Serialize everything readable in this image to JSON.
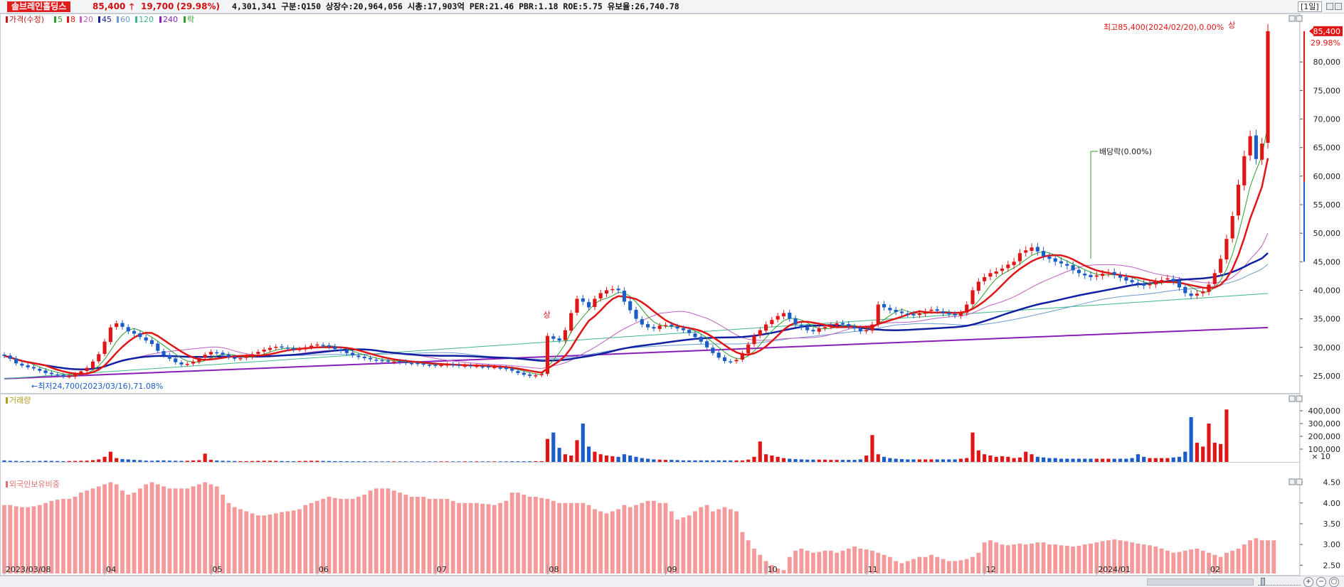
{
  "header": {
    "stock_name": "솔브레인홀딩스",
    "price": "85,400",
    "up_arrow": "🡑",
    "change": "19,700",
    "change_pct": "(29.98%)",
    "stats": "4,301,341  구분:Q150 상장수:20,964,056 시총:17,903억 PER:21.46 PBR:1.18 ROE:5.75 유보율:26,740.78",
    "period": "[1일]"
  },
  "colors": {
    "up": "#e01616",
    "down": "#1a5cc8",
    "ma5": "#2ca02c",
    "ma8": "#e01616",
    "ma20": "#c060c0",
    "ma45": "#1020a0",
    "ma60": "#6a9ad0",
    "ma120": "#3cb88a",
    "ma240": "#8a1fb8",
    "foreign_bar": "#f49a9a"
  },
  "chart_data": [
    {
      "type": "candlestick",
      "title": "가격(수정)",
      "legend": [
        {
          "name": "가격(수정)",
          "color": "#c01818"
        },
        {
          "name": "5",
          "color": "#2ca02c"
        },
        {
          "name": "8",
          "color": "#e01616"
        },
        {
          "name": "20",
          "color": "#c060c0"
        },
        {
          "name": "45",
          "color": "#1020a0"
        },
        {
          "name": "60",
          "color": "#6a9ad0"
        },
        {
          "name": "120",
          "color": "#3cb88a"
        },
        {
          "name": "240",
          "color": "#8a1fb8"
        },
        {
          "name": "락",
          "color": "#2ca02c"
        }
      ],
      "x_labels": [
        {
          "label": "2023/03/08",
          "index": 0
        },
        {
          "label": "04",
          "index": 17
        },
        {
          "label": "05",
          "index": 35
        },
        {
          "label": "06",
          "index": 53
        },
        {
          "label": "07",
          "index": 73
        },
        {
          "label": "08",
          "index": 92
        },
        {
          "label": "09",
          "index": 112
        },
        {
          "label": "10",
          "index": 129
        },
        {
          "label": "11",
          "index": 146
        },
        {
          "label": "12",
          "index": 166
        },
        {
          "label": "2024/01",
          "index": 185
        },
        {
          "label": "02",
          "index": 204
        }
      ],
      "y_ticks": [
        25000,
        30000,
        35000,
        40000,
        45000,
        50000,
        55000,
        60000,
        65000,
        70000,
        75000,
        80000
      ],
      "y_tick_labels": [
        "25,000",
        "30,000",
        "35,000",
        "40,000",
        "45,000",
        "50,000",
        "55,000",
        "60,000",
        "65,000",
        "70,000",
        "75,000",
        "80,000"
      ],
      "ylim": [
        22500,
        87500
      ],
      "current_price_label": "85,400",
      "current_change_label": "29.98%",
      "closes": [
        28500,
        28000,
        27200,
        26800,
        26500,
        26300,
        25900,
        25500,
        25300,
        25100,
        24900,
        24900,
        25300,
        25800,
        26400,
        27500,
        28800,
        31000,
        33500,
        34200,
        33600,
        32800,
        32400,
        31800,
        31200,
        30600,
        29400,
        28600,
        28000,
        27400,
        27000,
        27100,
        27500,
        28100,
        28700,
        29200,
        29000,
        28700,
        28300,
        28000,
        28100,
        28400,
        28800,
        29200,
        29600,
        29900,
        30100,
        30000,
        29800,
        29600,
        29700,
        30000,
        30300,
        30500,
        30300,
        30100,
        29700,
        29400,
        29000,
        28600,
        28300,
        28100,
        27900,
        27700,
        27600,
        27500,
        27500,
        27400,
        27300,
        27200,
        27100,
        27000,
        26900,
        26800,
        26900,
        27000,
        26900,
        26800,
        26800,
        26700,
        26700,
        26600,
        26500,
        26500,
        26400,
        26200,
        25900,
        25500,
        25200,
        25000,
        25100,
        25300,
        32000,
        31500,
        31200,
        33000,
        36000,
        38500,
        38000,
        37000,
        38500,
        39500,
        40000,
        40200,
        40000,
        38000,
        36500,
        35000,
        34000,
        33500,
        33300,
        33800,
        33900,
        33700,
        33300,
        33000,
        32500,
        31800,
        31000,
        30000,
        29000,
        28200,
        27600,
        27500,
        27800,
        29000,
        30500,
        32000,
        33000,
        34000,
        34800,
        35500,
        36000,
        35000,
        34000,
        33500,
        33000,
        32800,
        33300,
        33600,
        33900,
        34200,
        34000,
        33700,
        33300,
        32800,
        33000,
        34000,
        37500,
        37000,
        36500,
        36200,
        36000,
        35800,
        35600,
        36000,
        36300,
        36600,
        36400,
        36000,
        35800,
        35600,
        36000,
        37500,
        40000,
        41500,
        42300,
        43000,
        43300,
        43800,
        44500,
        45000,
        46500,
        47000,
        47500,
        46800,
        46000,
        45500,
        45000,
        44700,
        44300,
        43500,
        43000,
        42600,
        42300,
        42600,
        42900,
        43100,
        42700,
        42200,
        41700,
        41400,
        41100,
        40800,
        41100,
        41500,
        41800,
        42100,
        41600,
        40500,
        39500,
        39000,
        39400,
        39800,
        41000,
        43000,
        45500,
        49000,
        53000,
        58500,
        63500,
        67000,
        63000,
        65700,
        85400
      ],
      "ma_series_note": "moving averages 5, 8, 20, 45, 60, 120, 240 computed from closes",
      "annotations": [
        {
          "text": "최고85,400(2024/02/20),0.00%",
          "index": 208
        },
        {
          "text": "←최저24,700(2023/03/16),71.08%",
          "index": 4
        },
        {
          "text": "배당락(0.00%)",
          "index": 184
        },
        {
          "text": "상",
          "index": 92
        },
        {
          "text": "상",
          "index": 208
        }
      ]
    },
    {
      "type": "bar",
      "title": "거래량",
      "y_ticks": [
        100000,
        200000,
        300000,
        400000
      ],
      "y_tick_labels": [
        "100,000",
        "200,000",
        "300,000",
        "400,000"
      ],
      "unit_label": "× 10",
      "ylim": [
        0,
        450000
      ],
      "values": [
        12000,
        9000,
        8000,
        6000,
        7000,
        6500,
        8000,
        9000,
        8000,
        7000,
        6000,
        7000,
        8000,
        9000,
        10000,
        14000,
        20000,
        40000,
        80000,
        30000,
        22000,
        20000,
        16000,
        14000,
        10000,
        9000,
        11000,
        12000,
        10000,
        9000,
        8000,
        9000,
        12000,
        14000,
        65000,
        16000,
        11000,
        9000,
        8000,
        7000,
        6000,
        6000,
        7000,
        8000,
        9000,
        9000,
        8000,
        7000,
        6000,
        6000,
        7000,
        8000,
        9000,
        9000,
        8000,
        7000,
        6000,
        6000,
        5000,
        5000,
        5000,
        5000,
        4000,
        4000,
        4000,
        4000,
        4000,
        4000,
        4000,
        4000,
        4000,
        4000,
        4000,
        4000,
        4000,
        4000,
        4000,
        4000,
        4000,
        4000,
        4000,
        4000,
        4000,
        4000,
        4000,
        4000,
        5000,
        5000,
        5000,
        5000,
        6000,
        6000,
        180000,
        230000,
        110000,
        60000,
        50000,
        170000,
        300000,
        120000,
        80000,
        60000,
        50000,
        45000,
        40000,
        60000,
        50000,
        40000,
        30000,
        25000,
        20000,
        18000,
        16000,
        16000,
        14000,
        12000,
        12000,
        12000,
        12000,
        12000,
        12000,
        12000,
        12000,
        12000,
        12000,
        12000,
        18000,
        40000,
        160000,
        60000,
        50000,
        40000,
        30000,
        25000,
        22000,
        20000,
        18000,
        18000,
        18000,
        18000,
        16000,
        16000,
        16000,
        16000,
        16000,
        20000,
        50000,
        210000,
        60000,
        40000,
        30000,
        25000,
        22000,
        20000,
        20000,
        20000,
        20000,
        20000,
        20000,
        20000,
        20000,
        20000,
        25000,
        30000,
        230000,
        90000,
        60000,
        50000,
        40000,
        45000,
        40000,
        30000,
        35000,
        80000,
        60000,
        40000,
        35000,
        30000,
        30000,
        25000,
        25000,
        25000,
        25000,
        25000,
        25000,
        25000,
        25000,
        25000,
        25000,
        25000,
        25000,
        30000,
        60000,
        40000,
        30000,
        30000,
        30000,
        30000,
        35000,
        40000,
        80000,
        350000,
        150000,
        120000,
        300000,
        150000,
        140000,
        410000,
        0
      ],
      "directions": "up/down per candle"
    },
    {
      "type": "bar",
      "title": "외국인보유비중",
      "y_ticks": [
        2.5,
        3.0,
        3.5,
        4.0,
        4.5
      ],
      "y_tick_labels": [
        "2.50",
        "3.00",
        "3.50",
        "4.00",
        "4.50"
      ],
      "ylim": [
        2.3,
        4.75
      ],
      "values": [
        3.95,
        3.95,
        3.92,
        3.9,
        3.9,
        3.92,
        3.95,
        4.0,
        4.05,
        4.08,
        4.1,
        4.1,
        4.15,
        4.25,
        4.3,
        4.35,
        4.4,
        4.45,
        4.5,
        4.45,
        4.3,
        4.2,
        4.25,
        4.35,
        4.45,
        4.5,
        4.45,
        4.4,
        4.35,
        4.35,
        4.35,
        4.35,
        4.4,
        4.45,
        4.5,
        4.45,
        4.4,
        4.2,
        4.0,
        3.9,
        3.85,
        3.8,
        3.75,
        3.7,
        3.7,
        3.72,
        3.75,
        3.78,
        3.8,
        3.82,
        3.85,
        3.95,
        4.0,
        4.05,
        4.1,
        4.15,
        4.12,
        4.1,
        4.1,
        4.1,
        4.15,
        4.2,
        4.3,
        4.35,
        4.35,
        4.35,
        4.3,
        4.25,
        4.2,
        4.15,
        4.15,
        4.15,
        4.1,
        4.1,
        4.1,
        4.1,
        4.05,
        4.0,
        4.0,
        4.0,
        4.0,
        3.98,
        3.97,
        3.95,
        4.0,
        4.05,
        4.25,
        4.25,
        4.2,
        4.15,
        4.15,
        4.12,
        4.1,
        4.05,
        4.0,
        4.0,
        4.0,
        4.0,
        4.0,
        3.95,
        3.85,
        3.8,
        3.75,
        3.8,
        3.85,
        3.95,
        3.9,
        3.95,
        4.0,
        4.05,
        4.05,
        4.0,
        4.0,
        3.8,
        3.6,
        3.65,
        3.7,
        3.8,
        3.9,
        3.95,
        3.8,
        3.85,
        3.9,
        3.85,
        3.8,
        3.3,
        3.1,
        2.9,
        2.75,
        2.6,
        2.5,
        2.42,
        2.38,
        2.7,
        2.85,
        2.9,
        2.85,
        2.8,
        2.82,
        2.85,
        2.85,
        2.8,
        2.85,
        2.9,
        2.95,
        2.9,
        2.88,
        2.85,
        2.8,
        2.75,
        2.7,
        2.6,
        2.55,
        2.6,
        2.65,
        2.7,
        2.7,
        2.75,
        2.7,
        2.65,
        2.6,
        2.6,
        2.62,
        2.65,
        2.7,
        2.8,
        3.05,
        3.1,
        3.05,
        3.0,
        2.98,
        3.0,
        3.02,
        3.0,
        3.02,
        3.05,
        3.05,
        3.0,
        3.0,
        2.98,
        2.97,
        2.95,
        2.97,
        3.0,
        3.02,
        3.05,
        3.08,
        3.1,
        3.12,
        3.1,
        3.08,
        3.05,
        3.02,
        3.0,
        2.98,
        2.95,
        2.9,
        2.85,
        2.8,
        2.82,
        2.85,
        2.88,
        2.9,
        2.85,
        2.8,
        2.75,
        2.7,
        2.8,
        2.85,
        2.9,
        3.0,
        3.1,
        3.15,
        3.1,
        3.1,
        3.1
      ]
    }
  ]
}
